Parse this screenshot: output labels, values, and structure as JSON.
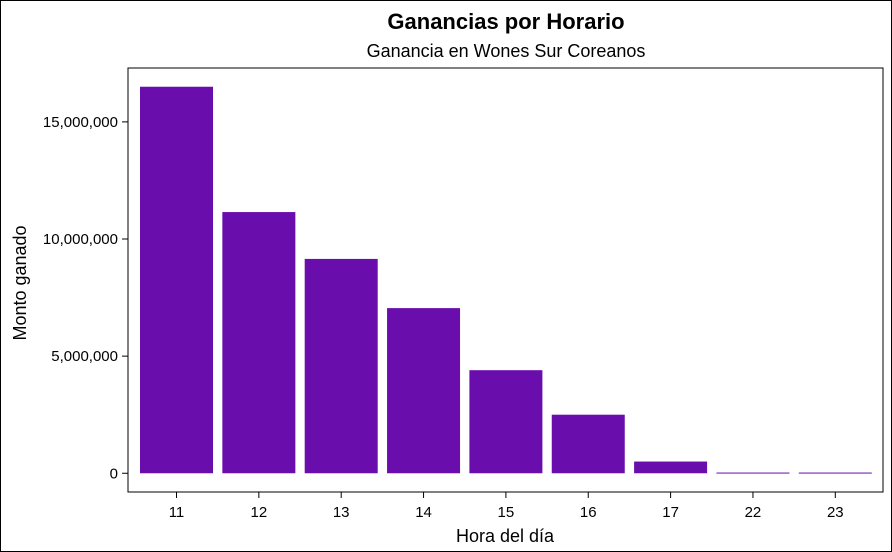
{
  "chart_data": {
    "type": "bar",
    "title": "Ganancias por Horario",
    "subtitle": "Ganancia en Wones Sur Coreanos",
    "xlabel": "Hora del día",
    "ylabel": "Monto ganado",
    "categories": [
      "11",
      "12",
      "13",
      "14",
      "15",
      "16",
      "17",
      "22",
      "23"
    ],
    "values": [
      16500000,
      11150000,
      9150000,
      7050000,
      4400000,
      2500000,
      500000,
      30000,
      30000
    ],
    "ylim": [
      -800000,
      17300000
    ],
    "yticks": [
      0,
      5000000,
      10000000,
      15000000
    ],
    "ytick_labels": [
      "0",
      "5,000,000",
      "10,000,000",
      "15,000,000"
    ],
    "grid": false,
    "legend": "none",
    "bar_color": "#6a0dad"
  }
}
